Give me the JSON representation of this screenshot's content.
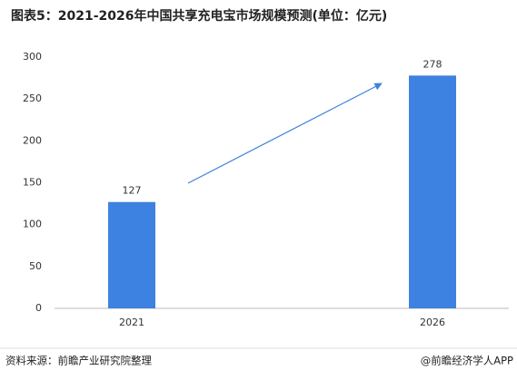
{
  "chart_data": {
    "type": "bar",
    "title": "图表5：2021-2026年中国共享充电宝市场规模预测(单位：亿元)",
    "categories": [
      "2021",
      "2026"
    ],
    "values": [
      127,
      278
    ],
    "color": "#3d82e0",
    "ylim": [
      0,
      300
    ],
    "yticks": [
      0,
      50,
      100,
      150,
      200,
      250,
      300
    ],
    "grid": false
  },
  "source": "资料来源：前瞻产业研究院整理",
  "footer_right": "@前瞻经济学人APP"
}
